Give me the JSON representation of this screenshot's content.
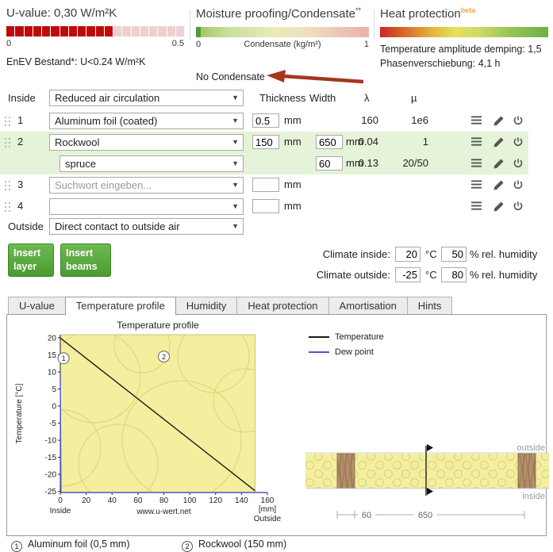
{
  "gauges": {
    "uvalue": {
      "title": "U-value: 0,30 W/m²K",
      "value": 0.3,
      "max": 0.5,
      "scale_min": "0",
      "scale_max": "0.5",
      "note": "EnEV Bestand*: U<0.24 W/m²K",
      "fill_color": "#c00a0a",
      "empty_color": "#f0cfcf"
    },
    "moisture": {
      "title": "Moisture proofing/Condensate",
      "title_sup": "**",
      "scale_min": "0",
      "scale_label": "Condensate (kg/m²)",
      "scale_max": "1",
      "note": "No Condensate",
      "marker_color": "#4e9a3a",
      "arrow_color": "#a5361f"
    },
    "heat": {
      "title": "Heat protection",
      "title_sup": "beta",
      "note1": "Temperature amplitude demping: 1,5",
      "note2": "Phasenverschiebung: 4,1 h"
    }
  },
  "layers": {
    "inside_label": "Inside",
    "inside_value": "Reduced air circulation",
    "outside_label": "Outside",
    "outside_value": "Direct contact to outside air",
    "headers": {
      "thickness": "Thickness",
      "width": "Width",
      "lambda": "λ",
      "mu": "µ"
    },
    "unit_mm": "mm",
    "highlight_color": "#e5f3d8",
    "rows": [
      {
        "num": "1",
        "material": "Aluminum foil (coated)",
        "placeholder": null,
        "indent": false,
        "thickness": "0.5",
        "width": null,
        "lambda": "160",
        "mu": "1e6",
        "highlight": false,
        "drag": true
      },
      {
        "num": "2",
        "material": "Rockwool",
        "placeholder": null,
        "indent": false,
        "thickness": "150",
        "width": "650",
        "lambda": "0.04",
        "mu": "1",
        "highlight": true,
        "drag": true
      },
      {
        "num": "",
        "material": "spruce",
        "placeholder": null,
        "indent": true,
        "thickness": null,
        "width": "60",
        "lambda": "0.13",
        "mu": "20/50",
        "highlight": true,
        "drag": false
      },
      {
        "num": "3",
        "material": "",
        "placeholder": "Suchwort eingeben...",
        "indent": false,
        "thickness": "",
        "width": null,
        "lambda": "",
        "mu": "",
        "highlight": false,
        "drag": true
      },
      {
        "num": "4",
        "material": "",
        "placeholder": null,
        "indent": false,
        "thickness": "",
        "width": null,
        "lambda": "",
        "mu": "",
        "highlight": false,
        "drag": true
      }
    ]
  },
  "buttons": {
    "insert_layer": "Insert layer",
    "insert_beams": "Insert beams",
    "button_color": "#4c9a31"
  },
  "climate": {
    "inside_label": "Climate inside:",
    "outside_label": "Climate outside:",
    "inside_temp": "20",
    "inside_humidity": "50",
    "outside_temp": "-25",
    "outside_humidity": "80",
    "temp_unit": "°C",
    "humidity_unit": "% rel. humidity"
  },
  "tabs": [
    {
      "label": "U-value",
      "active": false
    },
    {
      "label": "Temperature profile",
      "active": true
    },
    {
      "label": "Humidity",
      "active": false
    },
    {
      "label": "Heat protection",
      "active": false
    },
    {
      "label": "Amortisation",
      "active": false
    },
    {
      "label": "Hints",
      "active": false
    }
  ],
  "chart_data": {
    "type": "line",
    "title": "Temperature profile",
    "xlabel": "[mm]",
    "ylabel": "Temperature [°C]",
    "xlim": [
      0,
      160
    ],
    "ylim": [
      -25.3,
      20.9
    ],
    "xticks": [
      0,
      20,
      40,
      60,
      80,
      100,
      120,
      140,
      160
    ],
    "yticks": [
      20,
      15,
      10,
      5,
      0,
      -5,
      -10,
      -15,
      -20,
      -25
    ],
    "wall_span_mm": [
      0,
      150.5
    ],
    "wall_fill": "#f3ef9e",
    "series": [
      {
        "name": "Temperature",
        "color": "#1a1a1a",
        "points": [
          [
            0,
            20
          ],
          [
            0.5,
            19.8
          ],
          [
            150.5,
            -24.8
          ]
        ]
      },
      {
        "name": "Dew point",
        "color": "#5353c8",
        "points": [
          [
            0,
            9.3
          ],
          [
            0.5,
            -26.5
          ],
          [
            160,
            -26.5
          ]
        ]
      }
    ],
    "markers": [
      {
        "label": "1",
        "x": 2.5,
        "y": 14
      },
      {
        "label": "2",
        "x": 80,
        "y": 14.5
      }
    ],
    "inside_label": "Inside",
    "outside_label": "Outside",
    "watermark": "www.u-wert.net",
    "legend_position": "right-top",
    "grid": false
  },
  "wall_diagram": {
    "outside_label": "outside",
    "inside_label": "inside",
    "beam_width_label": "60",
    "field_width_label": "650"
  },
  "footnotes": [
    {
      "num": "1",
      "text": "Aluminum foil (0,5 mm)"
    },
    {
      "num": "2",
      "text": "Rockwool (150 mm)"
    }
  ]
}
